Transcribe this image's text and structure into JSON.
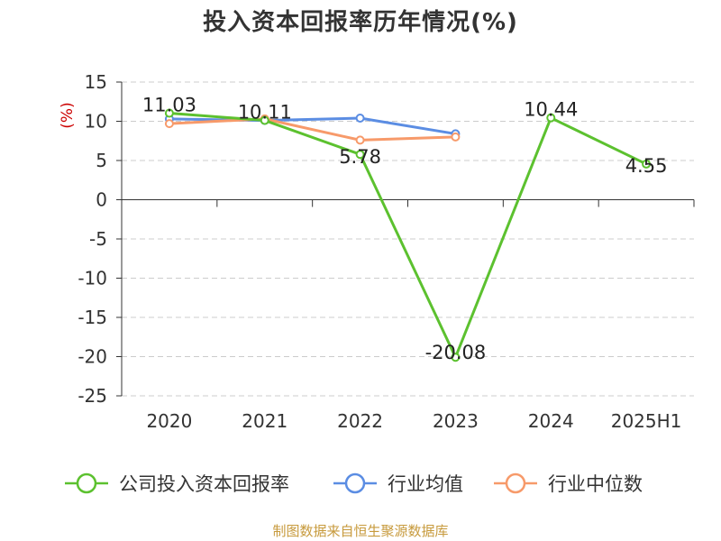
{
  "title": "投入资本回报率历年情况(%)",
  "source": "制图数据来自恒生聚源数据库",
  "colors": {
    "company": "#5cc12f",
    "industry_avg": "#5b8de3",
    "industry_median": "#f79a6a",
    "ylabel": "#cc0000",
    "grid": "#cccccc",
    "axis": "#333333",
    "text": "#333333",
    "source": "#c79a3c"
  },
  "chart_data": {
    "type": "line",
    "title": "投入资本回报率历年情况(%)",
    "ylabel": "(%)",
    "xlabel": "",
    "categories": [
      "2020",
      "2021",
      "2022",
      "2023",
      "2024",
      "2025H1"
    ],
    "ylim": [
      -25,
      15
    ],
    "yticks": [
      15,
      10,
      5,
      0,
      -5,
      -10,
      -15,
      -20,
      -25
    ],
    "grid": true,
    "legend_position": "bottom",
    "series": [
      {
        "name": "公司投入资本回报率",
        "values": [
          11.03,
          10.11,
          5.78,
          -20.08,
          10.44,
          4.55
        ],
        "labels": [
          "11.03",
          "10.11",
          "5.78",
          "-20.08",
          "10.44",
          "4.55"
        ]
      },
      {
        "name": "行业均值",
        "values": [
          10.3,
          10.1,
          10.4,
          8.4,
          null,
          null
        ]
      },
      {
        "name": "行业中位数",
        "values": [
          9.7,
          10.3,
          7.6,
          8.0,
          null,
          null
        ]
      }
    ]
  }
}
